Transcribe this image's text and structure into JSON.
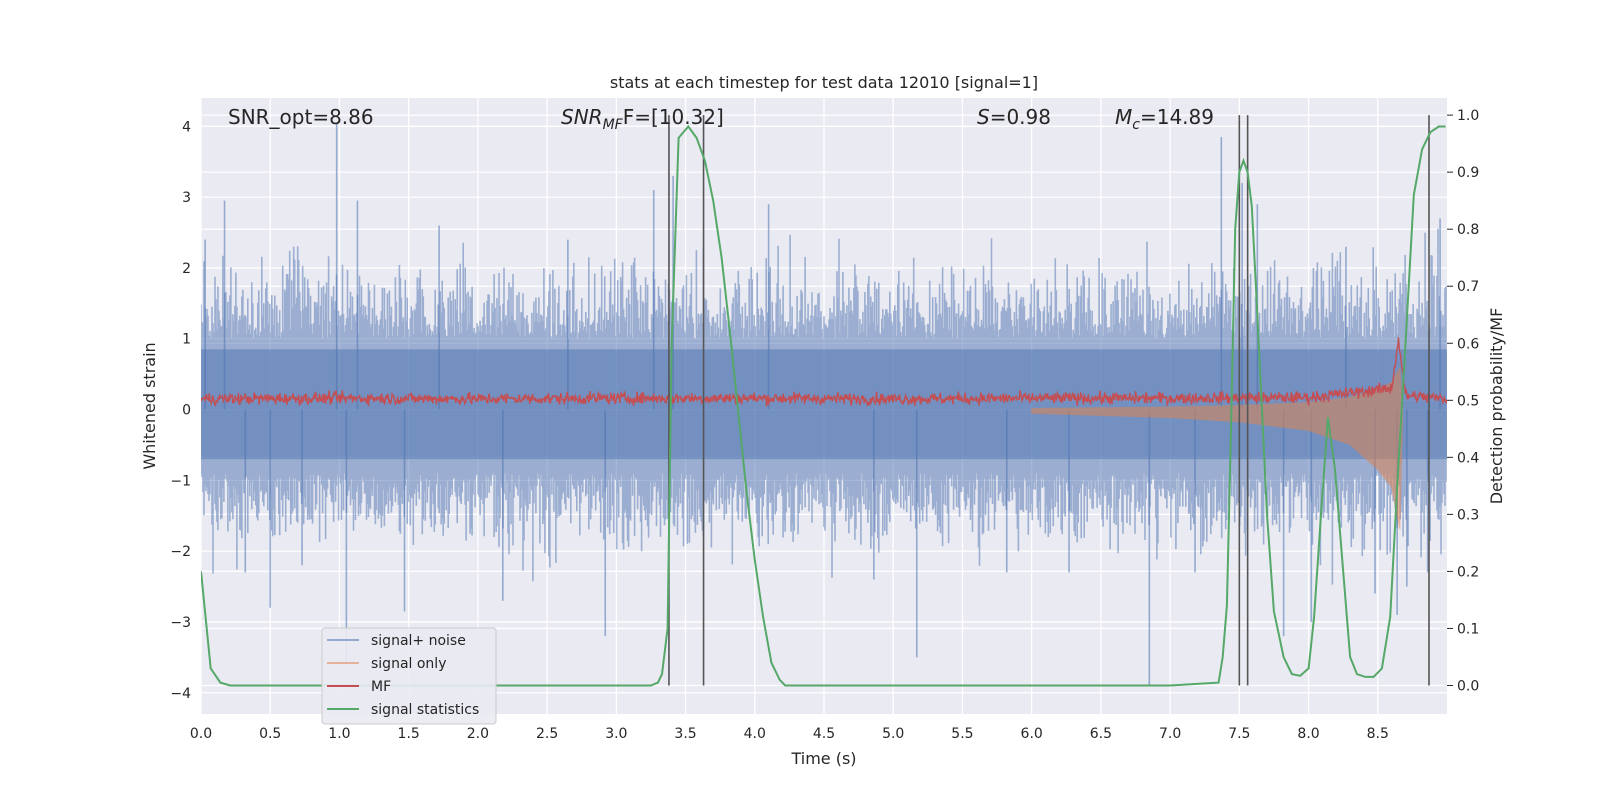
{
  "chart_data": {
    "type": "line",
    "title": "stats at each timestep for test data 12010 [signal=1]",
    "xlabel": "Time (s)",
    "ylabel": "Whitened strain",
    "y2label": "Detection probability/MF",
    "xlim": [
      0.0,
      9.0
    ],
    "ylim": [
      -4.3,
      4.4
    ],
    "y2lim": [
      -0.05,
      1.03
    ],
    "xticks": [
      0.0,
      0.5,
      1.0,
      1.5,
      2.0,
      2.5,
      3.0,
      3.5,
      4.0,
      4.5,
      5.0,
      5.5,
      6.0,
      6.5,
      7.0,
      7.5,
      8.0,
      8.5
    ],
    "xtick_labels": [
      "0.0",
      "0.5",
      "1.0",
      "1.5",
      "2.0",
      "2.5",
      "3.0",
      "3.5",
      "4.0",
      "4.5",
      "5.0",
      "5.5",
      "6.0",
      "6.5",
      "7.0",
      "7.5",
      "8.0",
      "8.5"
    ],
    "yticks": [
      -4,
      -3,
      -2,
      -1,
      0,
      1,
      2,
      3,
      4
    ],
    "ytick_labels": [
      "−4",
      "−3",
      "−2",
      "−1",
      "0",
      "1",
      "2",
      "3",
      "4"
    ],
    "y2ticks": [
      0.0,
      0.1,
      0.2,
      0.3,
      0.4,
      0.5,
      0.6,
      0.7,
      0.8,
      0.9,
      1.0
    ],
    "y2tick_labels": [
      "0.0",
      "0.1",
      "0.2",
      "0.3",
      "0.4",
      "0.5",
      "0.6",
      "0.7",
      "0.8",
      "0.9",
      "1.0"
    ],
    "annotations": {
      "snr_opt": "SNR_opt=8.86",
      "snr_mf_main": "SNR",
      "snr_mf_sub": "MF",
      "snr_mf_rest": "F=[10.32]",
      "s_sym": "S",
      "s_val": "=0.98",
      "mc_sym": "M",
      "mc_sub": "c",
      "mc_val": "=14.89"
    },
    "legend": {
      "location": "lower-left",
      "entries": [
        "signal+ noise",
        "signal only",
        "MF",
        "signal statistics"
      ]
    },
    "colors": {
      "signal_noise": "#4c72b0",
      "signal_only": "#dd8452",
      "mf": "#c44e52",
      "statistics": "#55a868",
      "vlines": "#555555",
      "background": "#eaeaf2",
      "grid": "#ffffff"
    },
    "vertical_lines_x": [
      3.38,
      3.63,
      7.5,
      7.56,
      8.87
    ],
    "series": [
      {
        "name": "signal statistics",
        "axis": "right",
        "x": [
          0.0,
          0.07,
          0.14,
          0.21,
          0.3,
          0.5,
          1.0,
          2.0,
          3.0,
          3.25,
          3.3,
          3.33,
          3.37,
          3.4,
          3.45,
          3.52,
          3.58,
          3.64,
          3.7,
          3.76,
          3.82,
          3.88,
          3.94,
          4.0,
          4.06,
          4.12,
          4.18,
          4.22,
          4.3,
          5.0,
          6.0,
          7.0,
          7.35,
          7.38,
          7.41,
          7.44,
          7.47,
          7.5,
          7.53,
          7.56,
          7.59,
          7.62,
          7.66,
          7.7,
          7.75,
          7.82,
          7.88,
          7.94,
          8.0,
          8.04,
          8.09,
          8.14,
          8.19,
          8.25,
          8.3,
          8.35,
          8.41,
          8.47,
          8.53,
          8.59,
          8.64,
          8.7,
          8.76,
          8.82,
          8.88,
          8.94,
          8.99
        ],
        "values": [
          0.2,
          0.03,
          0.005,
          0.0,
          0.0,
          0.0,
          0.0,
          0.0,
          0.0,
          0.0,
          0.005,
          0.02,
          0.1,
          0.6,
          0.96,
          0.98,
          0.96,
          0.92,
          0.85,
          0.75,
          0.62,
          0.48,
          0.34,
          0.22,
          0.12,
          0.04,
          0.01,
          0.0,
          0.0,
          0.0,
          0.0,
          0.0,
          0.005,
          0.05,
          0.14,
          0.45,
          0.8,
          0.9,
          0.92,
          0.9,
          0.84,
          0.7,
          0.5,
          0.3,
          0.13,
          0.05,
          0.02,
          0.017,
          0.03,
          0.12,
          0.3,
          0.47,
          0.38,
          0.2,
          0.05,
          0.02,
          0.015,
          0.015,
          0.03,
          0.12,
          0.35,
          0.6,
          0.86,
          0.94,
          0.97,
          0.98,
          0.98
        ]
      },
      {
        "name": "MF",
        "axis": "left",
        "description_values": "thin band between 0.0 and 0.3 across the record, peaking near 1.0 at t=8.65",
        "x": [
          0.0,
          1.0,
          2.0,
          3.0,
          4.0,
          5.0,
          6.0,
          7.0,
          8.0,
          8.6,
          8.65,
          8.7,
          9.0
        ],
        "values": [
          0.15,
          0.16,
          0.15,
          0.16,
          0.16,
          0.15,
          0.16,
          0.16,
          0.17,
          0.3,
          1.0,
          0.2,
          0.15
        ]
      },
      {
        "name": "signal only",
        "axis": "left",
        "envelope_x": [
          0.0,
          4.0,
          6.0,
          7.0,
          7.5,
          8.0,
          8.3,
          8.5,
          8.6,
          8.66,
          8.68
        ],
        "envelope_values": [
          0.02,
          0.03,
          0.06,
          0.12,
          0.18,
          0.3,
          0.5,
          0.85,
          1.1,
          1.7,
          0.0
        ]
      },
      {
        "name": "signal+ noise",
        "axis": "left",
        "band_values": [
          -0.7,
          0.85
        ],
        "spike_x": [
          0.03,
          0.17,
          0.32,
          0.5,
          0.73,
          0.98,
          1.05,
          1.13,
          1.47,
          1.72,
          2.18,
          2.65,
          2.92,
          3.27,
          3.41,
          4.1,
          4.86,
          5.17,
          5.82,
          6.27,
          6.85,
          7.18,
          7.37,
          7.52,
          7.63,
          7.82,
          8.02,
          8.27,
          8.48,
          8.64,
          8.71,
          8.86,
          8.95
        ],
        "spike_values": [
          2.4,
          2.95,
          -2.3,
          -2.8,
          -2.2,
          4.05,
          -3.6,
          2.95,
          -2.85,
          2.6,
          -2.7,
          2.4,
          -3.2,
          3.1,
          3.3,
          2.9,
          -2.4,
          -3.5,
          -2.3,
          -2.3,
          -3.9,
          -2.3,
          3.85,
          3.2,
          2.9,
          -3.2,
          -3.0,
          2.3,
          -2.6,
          -2.9,
          -2.5,
          -2.3,
          2.7
        ]
      }
    ]
  }
}
